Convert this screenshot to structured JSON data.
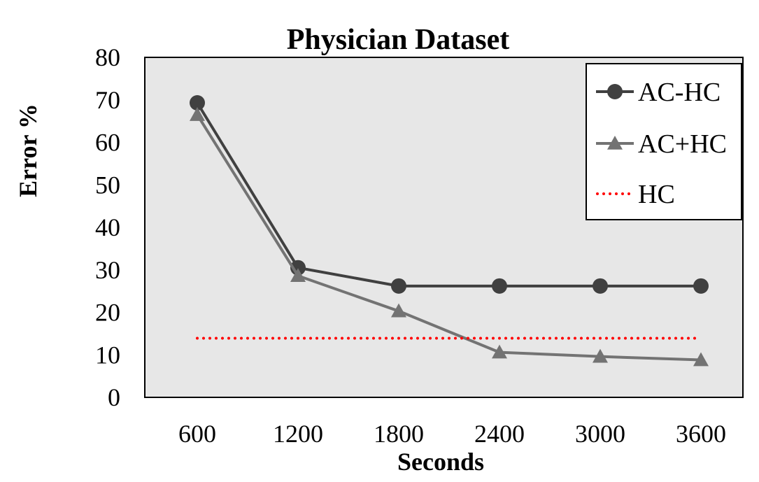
{
  "chart_data": {
    "type": "line",
    "title": "Physician Dataset",
    "xlabel": "Seconds",
    "ylabel": "Error %",
    "categories": [
      "600",
      "1200",
      "1800",
      "2400",
      "3000",
      "3600"
    ],
    "ylim": [
      0,
      80
    ],
    "yticks": [
      0,
      10,
      20,
      30,
      40,
      50,
      60,
      70,
      80
    ],
    "grid": false,
    "plot_background": "#e7e7e7",
    "legend_position": "top-right",
    "series": [
      {
        "name": "AC-HC",
        "values": [
          69.3,
          30.5,
          26.2,
          26.2,
          26.2,
          26.2
        ],
        "color": "#404040",
        "marker": "circle",
        "line": "solid"
      },
      {
        "name": "AC+HC",
        "values": [
          66.5,
          28.6,
          20.3,
          10.6,
          9.6,
          8.8
        ],
        "color": "#737373",
        "marker": "triangle",
        "line": "solid"
      },
      {
        "name": "HC",
        "values": [
          13.9,
          13.9,
          13.9,
          13.9,
          13.9,
          13.9
        ],
        "color": "#ff0000",
        "marker": "none",
        "line": "dotted"
      }
    ]
  }
}
